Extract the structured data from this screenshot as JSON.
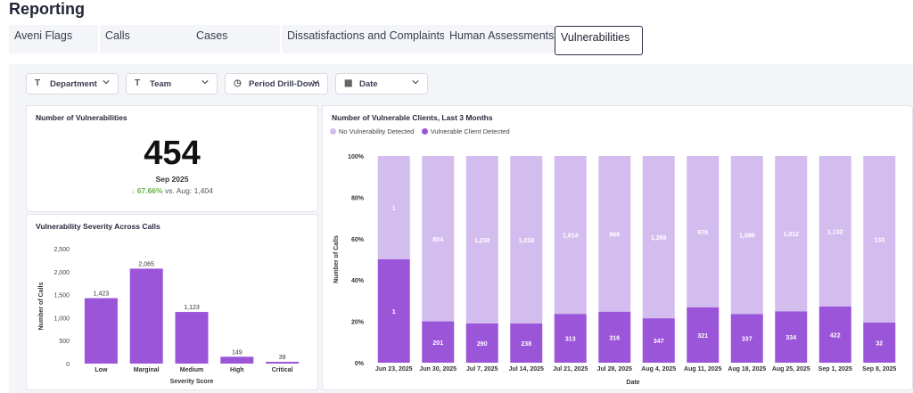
{
  "page_title": "Reporting",
  "tabs": [
    {
      "label": "Aveni Flags"
    },
    {
      "label": "Calls"
    },
    {
      "label": "Cases"
    },
    {
      "label": "Dissatisfactions and Complaints"
    },
    {
      "label": "Human Assessments"
    },
    {
      "label": "Vulnerabilities",
      "active": true
    }
  ],
  "filters": {
    "department": "Department",
    "team": "Team",
    "period": "Period Drill-Down",
    "date": "Date"
  },
  "kpi": {
    "title": "Number of Vulnerabilities",
    "value": "454",
    "period": "Sep 2025",
    "change_pct": "67.66%",
    "compare_text": "vs. Aug: 1,404"
  },
  "colors": {
    "accent_dark": "#9b55d9",
    "accent_light": "#d3bdef",
    "positive": "#6ab04c"
  },
  "chart_data": [
    {
      "type": "bar",
      "title": "Vulnerability Severity Across Calls",
      "xlabel": "Severity Score",
      "ylabel": "Number of Calls",
      "categories": [
        "Low",
        "Marginal",
        "Medium",
        "High",
        "Critical"
      ],
      "values": [
        1423,
        2065,
        1123,
        149,
        39
      ],
      "value_labels": [
        "1,423",
        "2,065",
        "1,123",
        "149",
        "39"
      ],
      "ylim": [
        0,
        2500
      ],
      "yticks": [
        "0",
        "500",
        "1,000",
        "1,500",
        "2,000",
        "2,500"
      ],
      "ytick_values": [
        0,
        500,
        1000,
        1500,
        2000,
        2500
      ]
    },
    {
      "type": "bar",
      "stacked": "percent",
      "title": "Number of Vulnerable Clients, Last 3 Months",
      "xlabel": "Date",
      "ylabel": "Number of Calls",
      "legend_position": "top-left",
      "categories": [
        "Jun 23, 2025",
        "Jun 30, 2025",
        "Jul 7, 2025",
        "Jul 14, 2025",
        "Jul 21, 2025",
        "Jul 28, 2025",
        "Aug 4, 2025",
        "Aug 11, 2025",
        "Aug 18, 2025",
        "Aug 25, 2025",
        "Sep 1, 2025",
        "Sep 8, 2025"
      ],
      "yticks": [
        "0%",
        "20%",
        "40%",
        "60%",
        "80%",
        "100%"
      ],
      "series": [
        {
          "name": "No Vulnerability Detected",
          "values": [
            1,
            804,
            1238,
            1018,
            1014,
            966,
            1269,
            878,
            1096,
            1012,
            1132,
            133
          ],
          "labels": [
            "1",
            "804",
            "1,238",
            "1,018",
            "1,014",
            "966",
            "1,269",
            "878",
            "1,096",
            "1,012",
            "1,132",
            "133"
          ]
        },
        {
          "name": "Vulnerable Client Detected",
          "values": [
            1,
            201,
            290,
            238,
            313,
            316,
            347,
            321,
            337,
            334,
            422,
            32
          ],
          "labels": [
            "1",
            "201",
            "290",
            "238",
            "313",
            "316",
            "347",
            "321",
            "337",
            "334",
            "422",
            "32"
          ]
        }
      ]
    }
  ]
}
